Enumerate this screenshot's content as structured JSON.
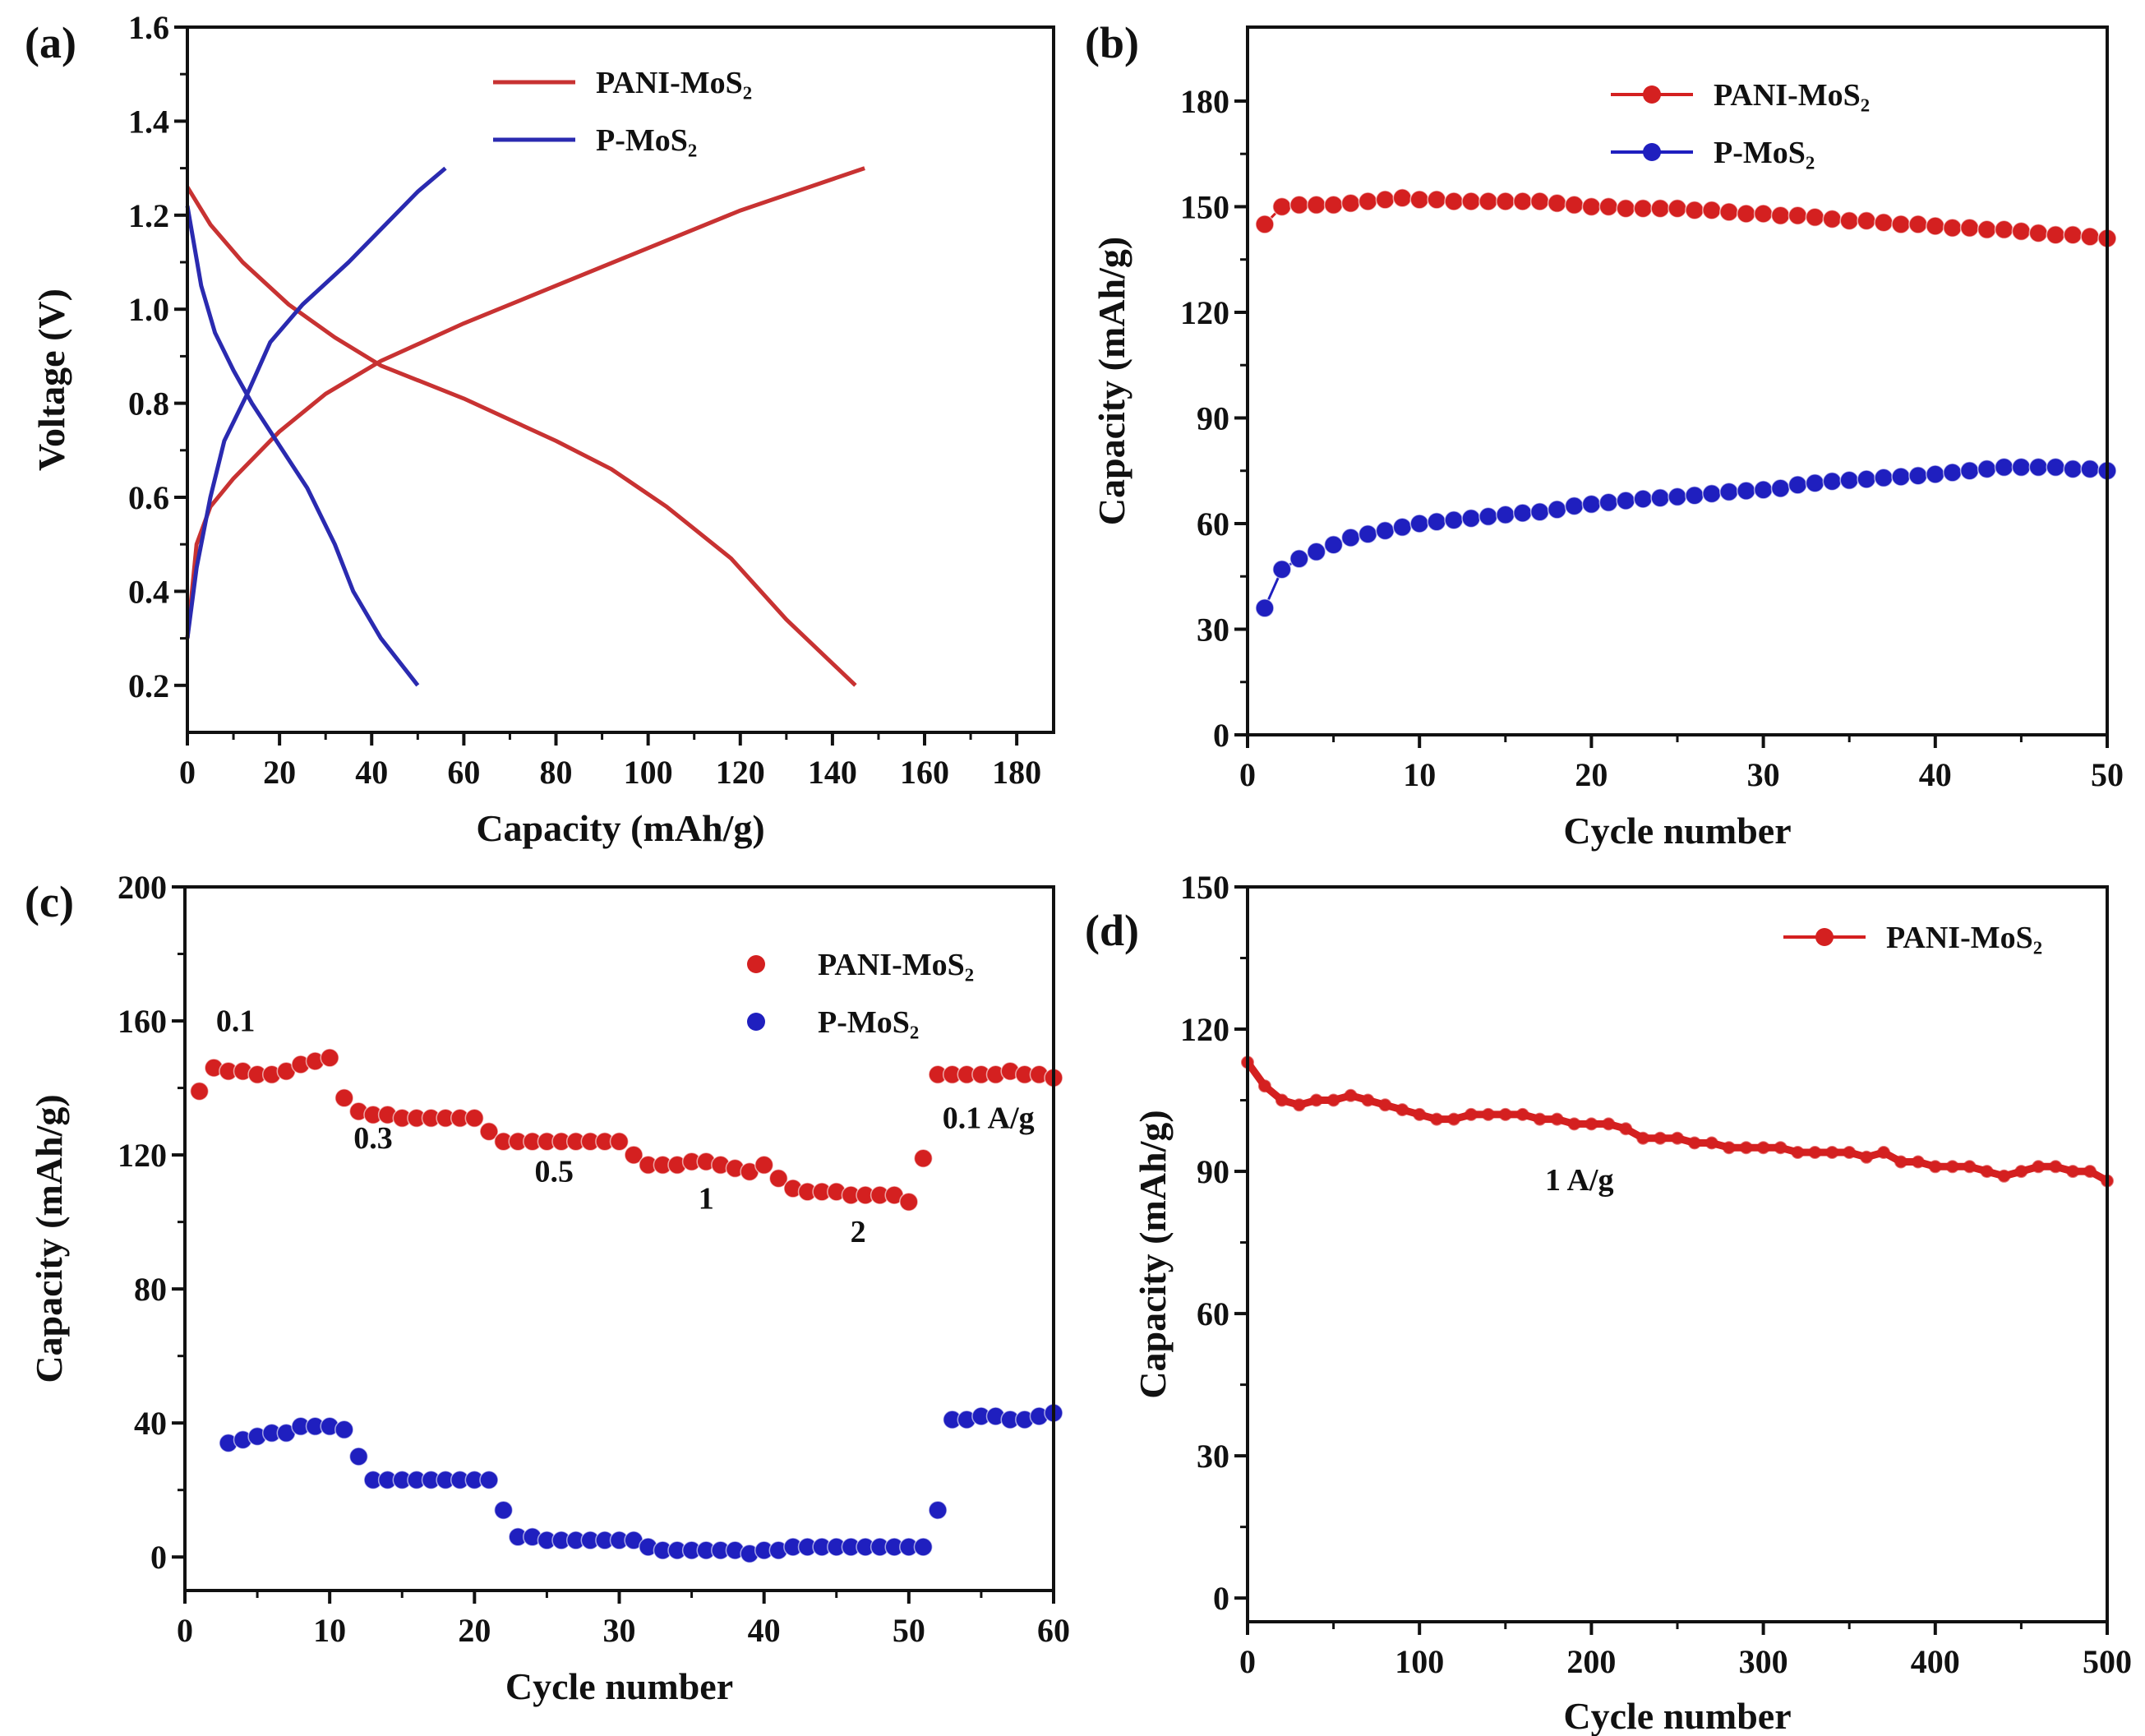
{
  "colors": {
    "pani": "#d42020",
    "pmos": "#1f1fbf",
    "pani_line_a": "#c83232",
    "pmos_line_a": "#2a2ab0",
    "axis": "#111111"
  },
  "chart_data": [
    {
      "id": "a",
      "panel_label": "(a)",
      "type": "line",
      "xlabel": "Capacity (mAh/g)",
      "ylabel": "Voltage (V)",
      "xlim": [
        0,
        188
      ],
      "ylim": [
        0.1,
        1.6
      ],
      "xticks": [
        0,
        20,
        40,
        60,
        80,
        100,
        120,
        140,
        160,
        180
      ],
      "yticks": [
        0.2,
        0.4,
        0.6,
        0.8,
        1.0,
        1.2,
        1.4,
        1.6
      ],
      "ytick_decimals": 1,
      "legend": {
        "placement": "top-center",
        "style": "line",
        "entries": [
          {
            "name": "PANI-MoS₂",
            "color": "pani_line_a"
          },
          {
            "name": "P-MoS₂",
            "color": "pmos_line_a"
          }
        ]
      },
      "series": [
        {
          "name": "PANI-MoS₂ charge",
          "color": "pani_line_a",
          "points": [
            [
              0,
              0.3
            ],
            [
              2,
              0.5
            ],
            [
              5,
              0.58
            ],
            [
              10,
              0.64
            ],
            [
              20,
              0.74
            ],
            [
              30,
              0.82
            ],
            [
              42,
              0.89
            ],
            [
              60,
              0.97
            ],
            [
              80,
              1.05
            ],
            [
              100,
              1.13
            ],
            [
              120,
              1.21
            ],
            [
              135,
              1.26
            ],
            [
              147,
              1.3
            ]
          ]
        },
        {
          "name": "PANI-MoS₂ discharge",
          "color": "pani_line_a",
          "points": [
            [
              0,
              1.26
            ],
            [
              5,
              1.18
            ],
            [
              12,
              1.1
            ],
            [
              22,
              1.01
            ],
            [
              32,
              0.94
            ],
            [
              42,
              0.88
            ],
            [
              60,
              0.81
            ],
            [
              80,
              0.72
            ],
            [
              92,
              0.66
            ],
            [
              104,
              0.58
            ],
            [
              118,
              0.47
            ],
            [
              130,
              0.34
            ],
            [
              145,
              0.2
            ]
          ]
        },
        {
          "name": "P-MoS₂ charge",
          "color": "pmos_line_a",
          "points": [
            [
              0,
              0.3
            ],
            [
              2,
              0.45
            ],
            [
              5,
              0.6
            ],
            [
              8,
              0.72
            ],
            [
              13,
              0.82
            ],
            [
              18,
              0.93
            ],
            [
              25,
              1.01
            ],
            [
              35,
              1.1
            ],
            [
              45,
              1.2
            ],
            [
              50,
              1.25
            ],
            [
              56,
              1.3
            ]
          ]
        },
        {
          "name": "P-MoS₂ discharge",
          "color": "pmos_line_a",
          "points": [
            [
              0,
              1.22
            ],
            [
              3,
              1.05
            ],
            [
              6,
              0.95
            ],
            [
              10,
              0.87
            ],
            [
              14,
              0.8
            ],
            [
              20,
              0.71
            ],
            [
              26,
              0.62
            ],
            [
              32,
              0.5
            ],
            [
              36,
              0.4
            ],
            [
              42,
              0.3
            ],
            [
              46,
              0.25
            ],
            [
              50,
              0.2
            ]
          ]
        }
      ],
      "annotations": []
    },
    {
      "id": "b",
      "panel_label": "(b)",
      "type": "line",
      "xlabel": "Cycle number",
      "ylabel": "Capacity (mAh/g)",
      "xlim": [
        0,
        50
      ],
      "ylim": [
        0,
        201
      ],
      "xticks": [
        0,
        10,
        20,
        30,
        40,
        50
      ],
      "yticks": [
        0,
        30,
        60,
        90,
        120,
        150,
        180
      ],
      "ytick_decimals": 0,
      "legend": {
        "placement": "top-center",
        "style": "line-marker",
        "entries": [
          {
            "name": "PANI-MoS₂",
            "color": "pani"
          },
          {
            "name": "P-MoS₂",
            "color": "pmos"
          }
        ]
      },
      "series": [
        {
          "name": "PANI-MoS₂",
          "color": "pani",
          "x_start": 1,
          "markers": true,
          "line": true,
          "values": [
            145,
            150,
            150.5,
            150.5,
            150.5,
            151,
            151.5,
            152,
            152.5,
            152,
            152,
            151.5,
            151.5,
            151.5,
            151.5,
            151.5,
            151.5,
            151,
            150.5,
            150,
            150,
            149.5,
            149.5,
            149.5,
            149.5,
            149,
            149,
            148.5,
            148,
            148,
            147.5,
            147.5,
            147,
            146.5,
            146,
            146,
            145.5,
            145,
            145,
            144.5,
            144,
            144,
            143.5,
            143.5,
            143,
            142.5,
            142,
            142,
            141.5,
            141
          ]
        },
        {
          "name": "P-MoS₂",
          "color": "pmos",
          "x_start": 1,
          "markers": true,
          "line": true,
          "values": [
            36,
            47,
            50,
            52,
            54,
            56,
            57,
            58,
            59,
            60,
            60.5,
            61,
            61.5,
            62,
            62.5,
            63,
            63.3,
            64,
            65,
            65.5,
            66,
            66.5,
            67,
            67.3,
            67.6,
            68,
            68.5,
            69,
            69.3,
            69.6,
            70,
            71,
            71.5,
            72,
            72.3,
            72.6,
            73,
            73.3,
            73.6,
            74,
            74.5,
            75,
            75.5,
            76,
            76,
            76,
            76,
            75.5,
            75.5,
            75
          ]
        }
      ],
      "annotations": []
    },
    {
      "id": "c",
      "panel_label": "(c)",
      "type": "scatter",
      "xlabel": "Cycle number",
      "ylabel": "Capacity (mAh/g)",
      "xlim": [
        0,
        60
      ],
      "ylim": [
        -10,
        200
      ],
      "xticks": [
        0,
        10,
        20,
        30,
        40,
        50,
        60
      ],
      "yticks": [
        0,
        40,
        80,
        120,
        160,
        200
      ],
      "ytick_decimals": 0,
      "legend": {
        "placement": "top-right",
        "style": "marker",
        "entries": [
          {
            "name": "PANI-MoS₂",
            "color": "pani"
          },
          {
            "name": "P-MoS₂",
            "color": "pmos"
          }
        ]
      },
      "series": [
        {
          "name": "PANI-MoS₂",
          "color": "pani",
          "x_start": 1,
          "markers": true,
          "line": false,
          "values": [
            139,
            146,
            145,
            145,
            144,
            144,
            145,
            147,
            148,
            149,
            137,
            133,
            132,
            132,
            131,
            131,
            131,
            131,
            131,
            131,
            127,
            124,
            124,
            124,
            124,
            124,
            124,
            124,
            124,
            124,
            120,
            117,
            117,
            117,
            118,
            118,
            117,
            116,
            115,
            117,
            113,
            110,
            109,
            109,
            109,
            108,
            108,
            108,
            108,
            106,
            119,
            144,
            144,
            144,
            144,
            144,
            145,
            144,
            144,
            143
          ]
        },
        {
          "name": "P-MoS₂",
          "color": "pmos",
          "x_start": 3,
          "markers": true,
          "line": false,
          "values": [
            34,
            35,
            36,
            37,
            37,
            39,
            39,
            39,
            38,
            30,
            23,
            23,
            23,
            23,
            23,
            23,
            23,
            23,
            23,
            14,
            6,
            6,
            5,
            5,
            5,
            5,
            5,
            5,
            5,
            3,
            2,
            2,
            2,
            2,
            2,
            2,
            1,
            2,
            2,
            3,
            3,
            3,
            3,
            3,
            3,
            3,
            3,
            3,
            3,
            14,
            41,
            41,
            42,
            42,
            41,
            41,
            42,
            43
          ]
        }
      ],
      "annotations": [
        {
          "text": "0.1",
          "x": 3.5,
          "y": 157
        },
        {
          "text": "0.3",
          "x": 13,
          "y": 122
        },
        {
          "text": "0.5",
          "x": 25.5,
          "y": 112
        },
        {
          "text": "1",
          "x": 36,
          "y": 104
        },
        {
          "text": "2",
          "x": 46.5,
          "y": 94
        },
        {
          "text": "0.1 A/g",
          "x": 55.5,
          "y": 128
        }
      ]
    },
    {
      "id": "d",
      "panel_label": "(d)",
      "type": "line",
      "xlabel": "Cycle number",
      "ylabel": "Capacity (mAh/g)",
      "xlim": [
        0,
        500
      ],
      "ylim": [
        -5,
        150
      ],
      "xticks": [
        0,
        100,
        200,
        300,
        400,
        500
      ],
      "yticks": [
        0,
        30,
        60,
        90,
        120,
        150
      ],
      "ytick_decimals": 0,
      "legend": {
        "placement": "top-right",
        "style": "line-marker",
        "entries": [
          {
            "name": "PANI-MoS₂",
            "color": "pani"
          }
        ]
      },
      "series": [
        {
          "name": "PANI-MoS₂",
          "color": "pani",
          "x_start": 0,
          "x_step": 10,
          "markers": true,
          "line": true,
          "values": [
            113,
            108,
            105,
            104,
            105,
            105,
            106,
            105,
            104,
            103,
            102,
            101,
            101,
            102,
            102,
            102,
            102,
            101,
            101,
            100,
            100,
            100,
            99,
            97,
            97,
            97,
            96,
            96,
            95,
            95,
            95,
            95,
            94,
            94,
            94,
            94,
            93,
            94,
            92,
            92,
            91,
            91,
            91,
            90,
            89,
            90,
            91,
            91,
            90,
            90,
            88
          ]
        }
      ],
      "annotations": [
        {
          "text": "1 A/g",
          "x": 193,
          "y": 86
        }
      ]
    }
  ]
}
